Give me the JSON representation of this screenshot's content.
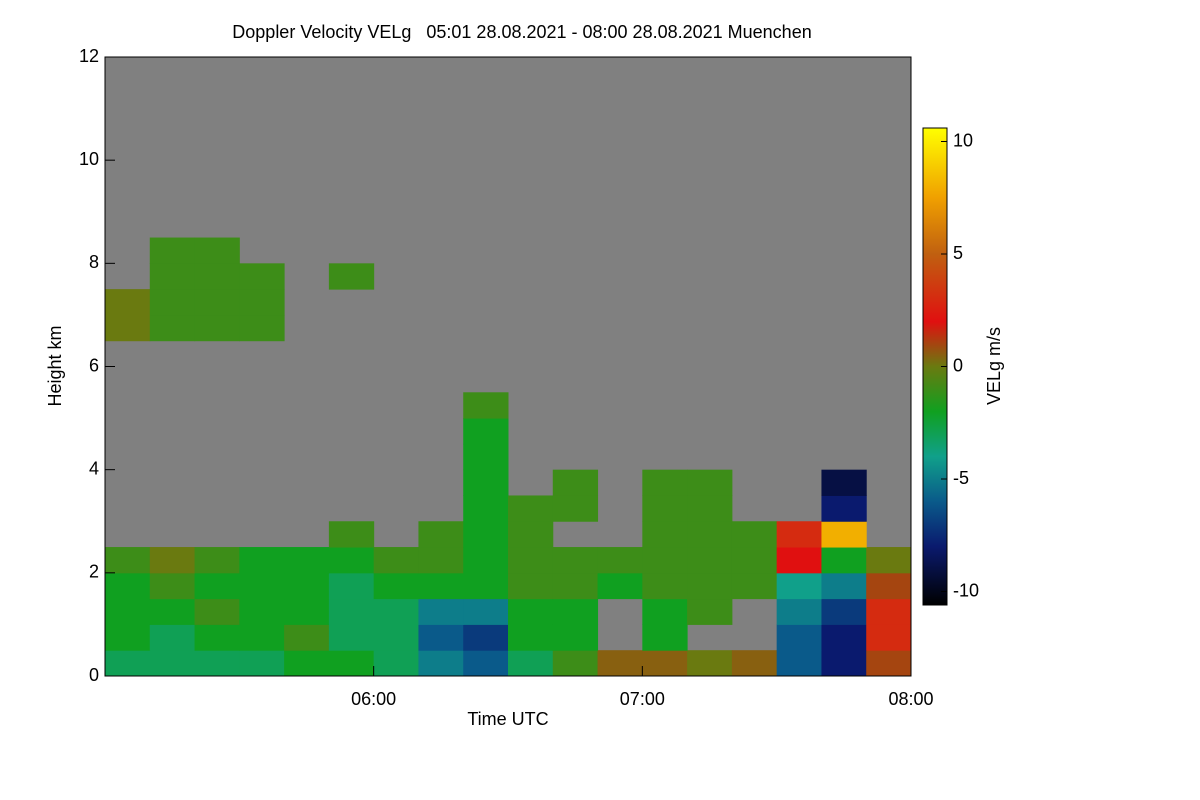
{
  "chart_data": {
    "type": "heatmap",
    "title": "Doppler Velocity VELg   05:01 28.08.2021 - 08:00 28.08.2021 Muenchen",
    "x_label": "Time UTC",
    "y_label": "Height km",
    "colorbar_label": "VELg m/s",
    "x": [
      305,
      315,
      325,
      335,
      345,
      355,
      365,
      375,
      385,
      395,
      405,
      415,
      425,
      435,
      445,
      455,
      465,
      475
    ],
    "y": [
      0.25,
      0.75,
      1.25,
      1.75,
      2.25,
      2.75,
      3.25,
      3.75,
      4.25,
      4.75,
      5.25,
      5.75,
      6.25,
      6.75,
      7.25,
      7.75,
      8.25
    ],
    "z": [
      [
        -3,
        -3,
        -3,
        -3,
        -2,
        -2,
        -3,
        -5,
        -6,
        -3,
        -1,
        0.5,
        0.5,
        0,
        0.5,
        -6,
        -8,
        1
      ],
      [
        -2,
        -3,
        -2,
        -2,
        -1,
        -3,
        -3,
        -6,
        -7,
        -2,
        -2,
        null,
        -2,
        null,
        null,
        -6,
        -8,
        3
      ],
      [
        -2,
        -2,
        -1,
        -2,
        -2,
        -3,
        -3,
        -5,
        -5,
        -2,
        -2,
        null,
        -2,
        -1,
        null,
        -5,
        -7,
        3
      ],
      [
        -2,
        -1,
        -2,
        -2,
        -2,
        -3,
        -2,
        -2,
        -2,
        -1,
        -1,
        -2,
        -1,
        -1,
        -1,
        -4,
        -5,
        1
      ],
      [
        -1,
        0,
        -1,
        -2,
        -2,
        -2,
        -1,
        -1,
        -2,
        -1,
        -1,
        -1,
        -1,
        -1,
        -1,
        2,
        -2,
        0
      ],
      [
        null,
        null,
        null,
        null,
        null,
        -1,
        null,
        -1,
        -2,
        -1,
        null,
        null,
        -1,
        -1,
        -1,
        3,
        8,
        null
      ],
      [
        null,
        null,
        null,
        null,
        null,
        null,
        null,
        null,
        -2,
        -1,
        -1,
        null,
        -1,
        -1,
        null,
        null,
        -8,
        null
      ],
      [
        null,
        null,
        null,
        null,
        null,
        null,
        null,
        null,
        -2,
        null,
        -1,
        null,
        -1,
        -1,
        null,
        null,
        -9,
        null
      ],
      [
        null,
        null,
        null,
        null,
        null,
        null,
        null,
        null,
        -2,
        null,
        null,
        null,
        null,
        null,
        null,
        null,
        null,
        null
      ],
      [
        null,
        null,
        null,
        null,
        null,
        null,
        null,
        null,
        -2,
        null,
        null,
        null,
        null,
        null,
        null,
        null,
        null,
        null
      ],
      [
        null,
        null,
        null,
        null,
        null,
        null,
        null,
        null,
        -1,
        null,
        null,
        null,
        null,
        null,
        null,
        null,
        null,
        null
      ],
      [
        null,
        null,
        null,
        null,
        null,
        null,
        null,
        null,
        null,
        null,
        null,
        null,
        null,
        null,
        null,
        null,
        null,
        null
      ],
      [
        null,
        null,
        null,
        null,
        null,
        null,
        null,
        null,
        null,
        null,
        null,
        null,
        null,
        null,
        null,
        null,
        null,
        null
      ],
      [
        0,
        -1,
        -1,
        -1,
        null,
        null,
        null,
        null,
        null,
        null,
        null,
        null,
        null,
        null,
        null,
        null,
        null,
        null
      ],
      [
        0,
        -1,
        -1,
        -1,
        null,
        null,
        null,
        null,
        null,
        null,
        null,
        null,
        null,
        null,
        null,
        null,
        null,
        null
      ],
      [
        null,
        -1,
        -1,
        -1,
        null,
        -1,
        null,
        null,
        null,
        null,
        null,
        null,
        null,
        null,
        null,
        null,
        null,
        null
      ],
      [
        null,
        -1,
        -1,
        null,
        null,
        null,
        null,
        null,
        null,
        null,
        null,
        null,
        null,
        null,
        null,
        null,
        null,
        null
      ]
    ],
    "cell_width": 10,
    "cell_height": 0.5,
    "xlim": [
      300,
      480
    ],
    "xticks": [
      {
        "value": 360,
        "label": "06:00"
      },
      {
        "value": 420,
        "label": "07:00"
      },
      {
        "value": 480,
        "label": "08:00"
      }
    ],
    "ylim": [
      0,
      12
    ],
    "yticks": [
      0,
      2,
      4,
      6,
      8,
      10,
      12
    ],
    "clim": [
      -10.6,
      10.6
    ],
    "cticks": [
      -10,
      -5,
      0,
      5,
      10
    ],
    "missing_color": "#808080",
    "colormap": [
      {
        "value": -10.6,
        "color": "#000000"
      },
      {
        "value": -8,
        "color": "#0a1a6e"
      },
      {
        "value": -6,
        "color": "#0a5a8a"
      },
      {
        "value": -4,
        "color": "#10a08a"
      },
      {
        "value": -2,
        "color": "#10a020"
      },
      {
        "value": 0,
        "color": "#6a7a10"
      },
      {
        "value": 2,
        "color": "#e01010"
      },
      {
        "value": 5,
        "color": "#c06010"
      },
      {
        "value": 7.5,
        "color": "#f0a000"
      },
      {
        "value": 10.6,
        "color": "#ffff00"
      }
    ]
  }
}
